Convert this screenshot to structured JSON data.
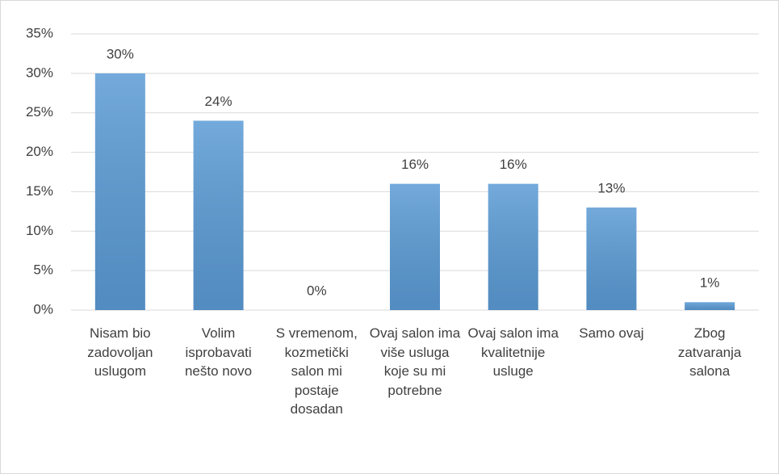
{
  "chart_data": {
    "type": "bar",
    "categories": [
      "Nisam bio zadovoljan uslugom",
      "Volim isprobavati nešto novo",
      "S vremenom, kozmetički salon mi postaje dosadan",
      "Ovaj salon ima više usluga koje su mi potrebne",
      "Ovaj salon ima kvalitetnije usluge",
      "Samo ovaj",
      "Zbog zatvaranja salona"
    ],
    "values": [
      30,
      24,
      0,
      16,
      16,
      13,
      1
    ],
    "value_labels": [
      "30%",
      "24%",
      "0%",
      "16%",
      "16%",
      "13%",
      "1%"
    ],
    "color": "#5b9bd5",
    "ylim": [
      0,
      35
    ],
    "yticks": [
      {
        "value": 0,
        "label": "0%"
      },
      {
        "value": 5,
        "label": "5%"
      },
      {
        "value": 10,
        "label": "10%"
      },
      {
        "value": 15,
        "label": "15%"
      },
      {
        "value": 20,
        "label": "20%"
      },
      {
        "value": 25,
        "label": "25%"
      },
      {
        "value": 30,
        "label": "30%"
      },
      {
        "value": 35,
        "label": "35%"
      }
    ],
    "grid": true
  }
}
